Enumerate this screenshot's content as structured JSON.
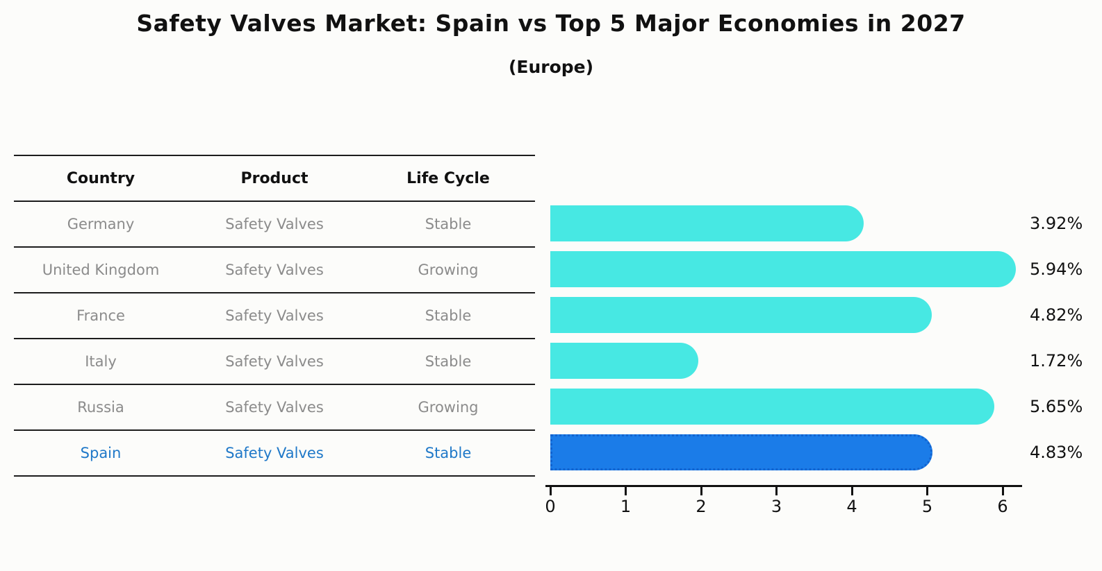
{
  "title": "Safety Valves Market: Spain vs Top 5 Major Economies in 2027",
  "subtitle": "(Europe)",
  "table": {
    "headers": [
      "Country",
      "Product",
      "Life Cycle"
    ],
    "rows": [
      {
        "country": "Germany",
        "product": "Safety Valves",
        "life_cycle": "Stable",
        "highlight": false
      },
      {
        "country": "United Kingdom",
        "product": "Safety Valves",
        "life_cycle": "Growing",
        "highlight": false
      },
      {
        "country": "France",
        "product": "Safety Valves",
        "life_cycle": "Stable",
        "highlight": false
      },
      {
        "country": "Italy",
        "product": "Safety Valves",
        "life_cycle": "Stable",
        "highlight": false
      },
      {
        "country": "Russia",
        "product": "Safety Valves",
        "life_cycle": "Growing",
        "highlight": false
      },
      {
        "country": "Spain",
        "product": "Safety Valves",
        "life_cycle": "Stable",
        "highlight": true
      }
    ]
  },
  "chart_data": {
    "type": "bar",
    "orientation": "horizontal",
    "title": "Safety Valves Market: Spain vs Top 5 Major Economies in 2027",
    "subtitle": "(Europe)",
    "categories": [
      "Germany",
      "United Kingdom",
      "France",
      "Italy",
      "Russia",
      "Spain"
    ],
    "values": [
      3.92,
      5.94,
      4.82,
      1.72,
      5.65,
      4.83
    ],
    "value_labels": [
      "3.92%",
      "5.94%",
      "4.82%",
      "1.72%",
      "5.65%",
      "4.83%"
    ],
    "unit": "%",
    "xlabel": "",
    "ylabel": "",
    "xlim": [
      0,
      6.3
    ],
    "x_ticks": [
      0,
      1,
      2,
      3,
      4,
      5,
      6
    ],
    "grid": false,
    "legend": false,
    "highlight_index": 5
  },
  "colors": {
    "bar_default": "#47e8e3",
    "bar_highlight": "#1b7ce8",
    "bar_highlight_border": "#1263cf",
    "highlight_text": "#1f78c8",
    "row_text": "#8b8b8b",
    "header_text": "#111111",
    "axis": "#111111",
    "background": "#fcfcfa"
  }
}
